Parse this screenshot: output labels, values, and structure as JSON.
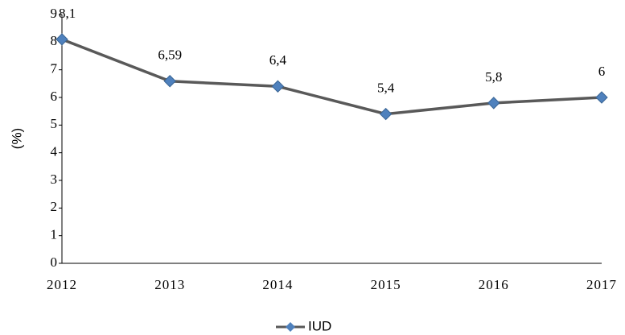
{
  "chart_data": {
    "type": "line",
    "categories": [
      "2012",
      "2013",
      "2014",
      "2015",
      "2016",
      "2017"
    ],
    "series": [
      {
        "name": "IUD",
        "color": "#595959",
        "marker_color": "#4f81bd",
        "values": [
          8.1,
          6.59,
          6.4,
          5.4,
          5.8,
          6
        ],
        "value_labels": [
          "8,1",
          "6,59",
          "6,4",
          "5,4",
          "5,8",
          "6"
        ]
      }
    ],
    "y_label": "(%)",
    "ylim": [
      0,
      9
    ],
    "yticks": [
      0,
      1,
      2,
      3,
      4,
      5,
      6,
      7,
      8,
      9
    ],
    "legend": "bottom"
  }
}
